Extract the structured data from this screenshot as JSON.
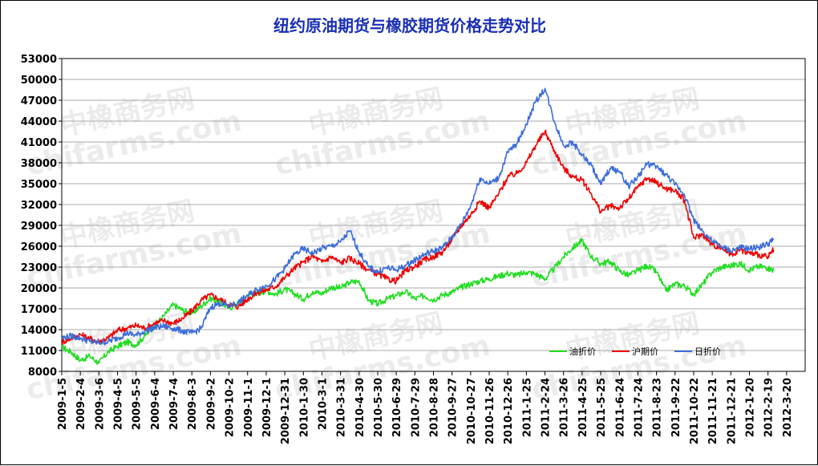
{
  "chart_data": {
    "type": "line",
    "title": "纽约原油期货与橡胶期货价格走势对比",
    "ylim": [
      8000,
      53000
    ],
    "yticks": [
      8000,
      11000,
      14000,
      17000,
      20000,
      23000,
      26000,
      29000,
      32000,
      35000,
      38000,
      41000,
      44000,
      47000,
      50000,
      53000
    ],
    "x_ticks": [
      "2009-1-5",
      "2009-2-4",
      "2009-3-6",
      "2009-4-5",
      "2009-5-5",
      "2009-6-4",
      "2009-7-4",
      "2009-8-3",
      "2009-9-2",
      "2009-10-2",
      "2009-11-1",
      "2009-12-1",
      "2009-12-31",
      "2010-1-30",
      "2010-3-1",
      "2010-3-31",
      "2010-4-30",
      "2010-5-30",
      "2010-6-29",
      "2010-7-29",
      "2010-8-28",
      "2010-9-27",
      "2010-10-27",
      "2010-11-26",
      "2010-12-26",
      "2011-1-25",
      "2011-2-24",
      "2011-3-26",
      "2011-4-25",
      "2011-5-25",
      "2011-6-24",
      "2011-7-24",
      "2011-8-23",
      "2011-9-22",
      "2011-10-22",
      "2011-11-21",
      "2011-12-21",
      "2012-1-20",
      "2012-2-19",
      "2012-3-20"
    ],
    "grid": true,
    "legend_position": "bottom-right",
    "watermark": [
      "中橡商务网",
      "chifarms.com"
    ],
    "series": [
      {
        "name": "油折价",
        "color": "#22dd22",
        "points": [
          [
            0,
            11500
          ],
          [
            0.5,
            10800
          ],
          [
            1,
            9600
          ],
          [
            1.5,
            10200
          ],
          [
            2,
            9200
          ],
          [
            2.5,
            10800
          ],
          [
            3,
            11600
          ],
          [
            3.5,
            12200
          ],
          [
            4,
            11800
          ],
          [
            4.5,
            13200
          ],
          [
            5,
            14600
          ],
          [
            5.5,
            16000
          ],
          [
            6,
            17600
          ],
          [
            6.5,
            16800
          ],
          [
            7,
            16300
          ],
          [
            7.5,
            17400
          ],
          [
            8,
            18500
          ],
          [
            8.5,
            18000
          ],
          [
            9,
            17100
          ],
          [
            9.5,
            17800
          ],
          [
            10,
            19000
          ],
          [
            10.5,
            19200
          ],
          [
            11,
            19600
          ],
          [
            11.5,
            19100
          ],
          [
            12,
            19800
          ],
          [
            12.5,
            19200
          ],
          [
            13,
            18400
          ],
          [
            13.5,
            19500
          ],
          [
            14,
            19200
          ],
          [
            14.5,
            20100
          ],
          [
            15,
            20000
          ],
          [
            15.5,
            20800
          ],
          [
            16,
            21000
          ],
          [
            16.5,
            18200
          ],
          [
            17,
            17700
          ],
          [
            17.5,
            18400
          ],
          [
            18,
            18900
          ],
          [
            18.5,
            19500
          ],
          [
            19,
            18400
          ],
          [
            19.5,
            18900
          ],
          [
            20,
            18300
          ],
          [
            20.5,
            19000
          ],
          [
            21,
            19400
          ],
          [
            21.5,
            20100
          ],
          [
            22,
            20600
          ],
          [
            22.5,
            21000
          ],
          [
            23,
            21300
          ],
          [
            23.5,
            21700
          ],
          [
            24,
            22100
          ],
          [
            24.5,
            21800
          ],
          [
            25,
            22300
          ],
          [
            25.5,
            22000
          ],
          [
            26,
            21300
          ],
          [
            26.5,
            22800
          ],
          [
            27,
            24500
          ],
          [
            27.5,
            25800
          ],
          [
            28,
            26800
          ],
          [
            28.5,
            24500
          ],
          [
            29,
            23500
          ],
          [
            29.5,
            23800
          ],
          [
            30,
            22500
          ],
          [
            30.5,
            21800
          ],
          [
            31,
            22500
          ],
          [
            31.5,
            23200
          ],
          [
            32,
            22300
          ],
          [
            32.5,
            19600
          ],
          [
            33,
            20600
          ],
          [
            33.5,
            20300
          ],
          [
            34,
            19100
          ],
          [
            34.5,
            20600
          ],
          [
            35,
            22300
          ],
          [
            35.5,
            23000
          ],
          [
            36,
            23200
          ],
          [
            36.5,
            23500
          ],
          [
            37,
            22600
          ],
          [
            37.5,
            23100
          ],
          [
            38,
            22900
          ],
          [
            38.3,
            22600
          ]
        ]
      },
      {
        "name": "沪期价",
        "color": "#ee0000",
        "points": [
          [
            0,
            12200
          ],
          [
            0.5,
            12800
          ],
          [
            1,
            13300
          ],
          [
            1.5,
            12700
          ],
          [
            2,
            12300
          ],
          [
            2.5,
            12800
          ],
          [
            3,
            13900
          ],
          [
            3.5,
            14200
          ],
          [
            4,
            14600
          ],
          [
            4.5,
            14200
          ],
          [
            5,
            14900
          ],
          [
            5.5,
            15300
          ],
          [
            6,
            14900
          ],
          [
            6.5,
            15600
          ],
          [
            7,
            16700
          ],
          [
            7.5,
            18200
          ],
          [
            8,
            19000
          ],
          [
            8.5,
            18400
          ],
          [
            9,
            17600
          ],
          [
            9.5,
            17300
          ],
          [
            10,
            18400
          ],
          [
            10.5,
            19300
          ],
          [
            11,
            19700
          ],
          [
            11.5,
            20200
          ],
          [
            12,
            21500
          ],
          [
            12.5,
            22800
          ],
          [
            13,
            23700
          ],
          [
            13.5,
            24600
          ],
          [
            14,
            23700
          ],
          [
            14.5,
            24500
          ],
          [
            15,
            23600
          ],
          [
            15.5,
            24300
          ],
          [
            16,
            23500
          ],
          [
            16.5,
            22600
          ],
          [
            17,
            22000
          ],
          [
            17.5,
            21300
          ],
          [
            18,
            21000
          ],
          [
            18.5,
            22500
          ],
          [
            19,
            23100
          ],
          [
            19.5,
            24000
          ],
          [
            20,
            24500
          ],
          [
            20.5,
            25200
          ],
          [
            21,
            27000
          ],
          [
            21.5,
            29000
          ],
          [
            22,
            30500
          ],
          [
            22.5,
            32500
          ],
          [
            23,
            31500
          ],
          [
            23.5,
            33500
          ],
          [
            24,
            36000
          ],
          [
            24.5,
            36500
          ],
          [
            25,
            38000
          ],
          [
            25.5,
            40500
          ],
          [
            26,
            42500
          ],
          [
            26.5,
            39800
          ],
          [
            27,
            37200
          ],
          [
            27.5,
            36000
          ],
          [
            28,
            35500
          ],
          [
            28.5,
            33500
          ],
          [
            29,
            31000
          ],
          [
            29.5,
            31800
          ],
          [
            30,
            31500
          ],
          [
            30.5,
            32800
          ],
          [
            31,
            34500
          ],
          [
            31.5,
            35800
          ],
          [
            32,
            35200
          ],
          [
            32.5,
            34300
          ],
          [
            33,
            34000
          ],
          [
            33.5,
            32600
          ],
          [
            34,
            27200
          ],
          [
            34.5,
            27700
          ],
          [
            35,
            26200
          ],
          [
            35.5,
            25800
          ],
          [
            36,
            24800
          ],
          [
            36.5,
            25500
          ],
          [
            37,
            25000
          ],
          [
            37.5,
            24800
          ],
          [
            38,
            24400
          ],
          [
            38.3,
            25500
          ]
        ]
      },
      {
        "name": "日折价",
        "color": "#3b6cd8",
        "points": [
          [
            0,
            12800
          ],
          [
            0.5,
            13100
          ],
          [
            1,
            12800
          ],
          [
            1.5,
            12300
          ],
          [
            2,
            12100
          ],
          [
            2.5,
            12300
          ],
          [
            3,
            12800
          ],
          [
            3.5,
            13500
          ],
          [
            4,
            13200
          ],
          [
            4.5,
            13800
          ],
          [
            5,
            14300
          ],
          [
            5.5,
            14500
          ],
          [
            6,
            14200
          ],
          [
            6.5,
            13800
          ],
          [
            7,
            13500
          ],
          [
            7.5,
            14200
          ],
          [
            8,
            17200
          ],
          [
            8.5,
            17800
          ],
          [
            9,
            17400
          ],
          [
            9.5,
            17900
          ],
          [
            10,
            18900
          ],
          [
            10.5,
            19800
          ],
          [
            11,
            20300
          ],
          [
            11.5,
            21300
          ],
          [
            12,
            22800
          ],
          [
            12.5,
            24800
          ],
          [
            13,
            25600
          ],
          [
            13.5,
            25000
          ],
          [
            14,
            25700
          ],
          [
            14.5,
            26000
          ],
          [
            15,
            26600
          ],
          [
            15.5,
            28200
          ],
          [
            16,
            25200
          ],
          [
            16.5,
            23000
          ],
          [
            17,
            22300
          ],
          [
            17.5,
            22900
          ],
          [
            18,
            22600
          ],
          [
            18.5,
            23200
          ],
          [
            19,
            24000
          ],
          [
            19.5,
            24800
          ],
          [
            20,
            25300
          ],
          [
            20.5,
            25800
          ],
          [
            21,
            27300
          ],
          [
            21.5,
            29200
          ],
          [
            22,
            31800
          ],
          [
            22.5,
            35800
          ],
          [
            23,
            35000
          ],
          [
            23.5,
            35800
          ],
          [
            24,
            39500
          ],
          [
            24.5,
            40800
          ],
          [
            25,
            43600
          ],
          [
            25.5,
            46800
          ],
          [
            26,
            48700
          ],
          [
            26.5,
            44000
          ],
          [
            27,
            40500
          ],
          [
            27.5,
            40900
          ],
          [
            28,
            39100
          ],
          [
            28.5,
            37600
          ],
          [
            29,
            34900
          ],
          [
            29.5,
            37200
          ],
          [
            30,
            36800
          ],
          [
            30.5,
            34600
          ],
          [
            31,
            36000
          ],
          [
            31.5,
            37900
          ],
          [
            32,
            37400
          ],
          [
            32.5,
            36300
          ],
          [
            33,
            34900
          ],
          [
            33.5,
            33500
          ],
          [
            34,
            29800
          ],
          [
            34.5,
            28100
          ],
          [
            35,
            26700
          ],
          [
            35.5,
            25900
          ],
          [
            36,
            25300
          ],
          [
            36.5,
            25800
          ],
          [
            37,
            25600
          ],
          [
            37.5,
            25900
          ],
          [
            38,
            26300
          ],
          [
            38.3,
            26900
          ]
        ]
      }
    ]
  }
}
